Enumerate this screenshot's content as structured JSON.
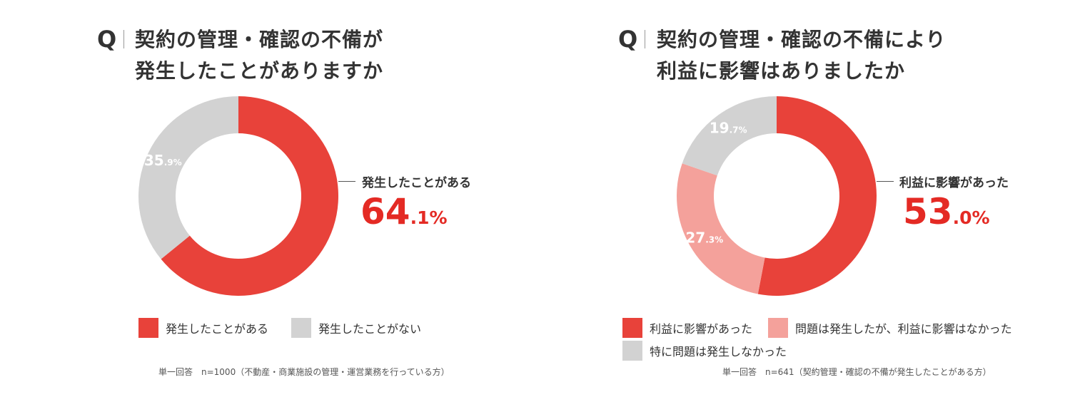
{
  "colors": {
    "red": "#e8423a",
    "gray": "#d2d2d2",
    "pink": "#f4a19b",
    "accent": "#e42a24"
  },
  "chart_data": [
    {
      "type": "pie",
      "q_mark": "Q",
      "title_lines": [
        "契約の管理・確認の不備が",
        "発生したことがありますか"
      ],
      "slices": [
        {
          "name": "発生したことがある",
          "value": 64.1,
          "value_int": "64",
          "value_dec": ".1%",
          "color": "#e8423a"
        },
        {
          "name": "発生したことがない",
          "value": 35.9,
          "value_int": "35",
          "value_dec": ".9%",
          "color": "#d2d2d2"
        }
      ],
      "callout": {
        "label": "発生したことがある",
        "value_int": "64",
        "value_dec": ".1%"
      },
      "note": "単一回答　n=1000（不動産・商業施設の管理・運営業務を行っている方）"
    },
    {
      "type": "pie",
      "q_mark": "Q",
      "title_lines": [
        "契約の管理・確認の不備により",
        "利益に影響はありましたか"
      ],
      "slices": [
        {
          "name": "利益に影響があった",
          "value": 53.0,
          "value_int": "53",
          "value_dec": ".0%",
          "color": "#e8423a"
        },
        {
          "name": "問題は発生したが、利益に影響はなかった",
          "value": 27.3,
          "value_int": "27",
          "value_dec": ".3%",
          "color": "#f4a19b"
        },
        {
          "name": "特に問題は発生しなかった",
          "value": 19.7,
          "value_int": "19",
          "value_dec": ".7%",
          "color": "#d2d2d2"
        }
      ],
      "callout": {
        "label": "利益に影響があった",
        "value_int": "53",
        "value_dec": ".0%"
      },
      "note": "単一回答　n=641（契約管理・確認の不備が発生したことがある方）"
    }
  ]
}
